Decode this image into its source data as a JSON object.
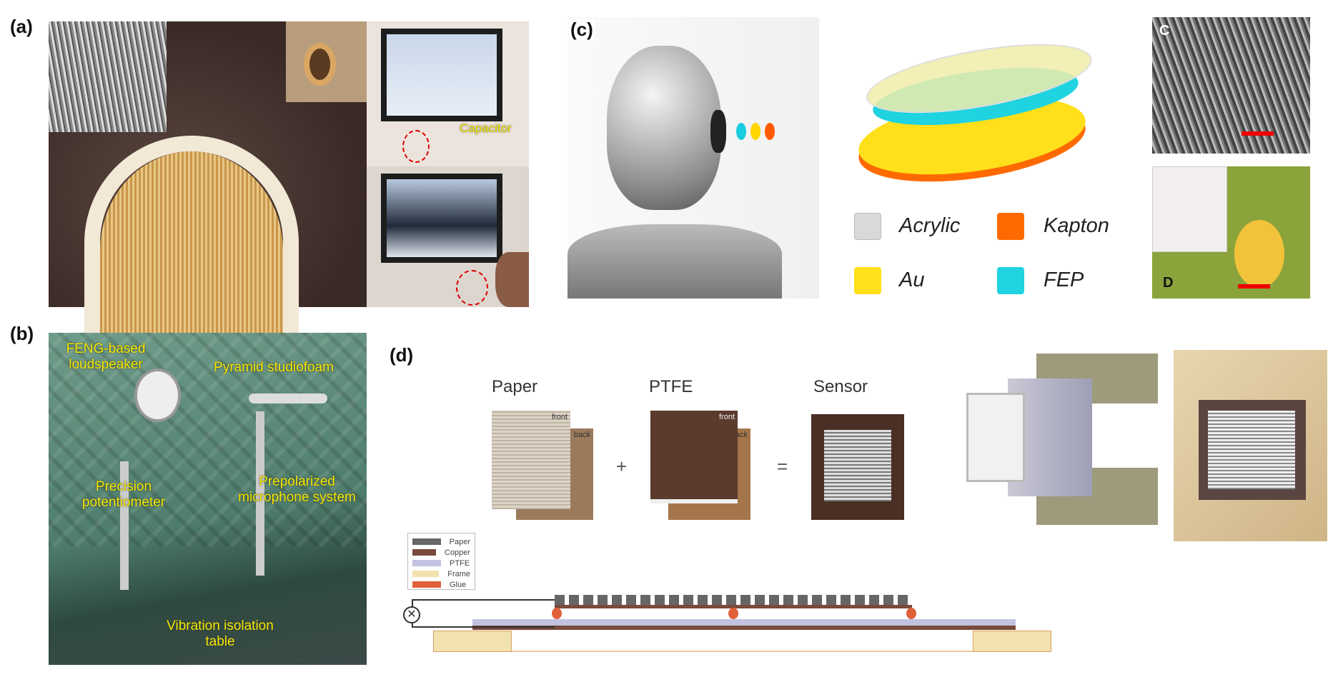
{
  "panel_a": {
    "label": "(a)",
    "capacitor_label": "Capacitor"
  },
  "panel_b": {
    "label": "(b)",
    "loudspeaker": "FENG-based loudspeaker",
    "foam": "Pyramid studiofoam",
    "potentiometer": "Precision potentiometer",
    "microphone": "Prepolarized microphone system",
    "table": "Vibration isolation table"
  },
  "panel_c": {
    "label": "(c)",
    "inset_c": "C",
    "inset_d": "D",
    "legend": [
      {
        "name": "Acrylic",
        "color": "#d9d9d9"
      },
      {
        "name": "Kapton",
        "color": "#ff6a00"
      },
      {
        "name": "Au",
        "color": "#ffe01a"
      },
      {
        "name": "FEP",
        "color": "#1fd3e0"
      }
    ]
  },
  "panel_d": {
    "label": "(d)",
    "paper": "Paper",
    "ptfe": "PTFE",
    "sensor": "Sensor",
    "front1": "front",
    "back1": "back",
    "front2": "front",
    "back2": "back",
    "plus": "+",
    "equals": "=",
    "legend": [
      {
        "name": "Paper",
        "color": "#666666"
      },
      {
        "name": "Copper",
        "color": "#7a4a3a"
      },
      {
        "name": "PTFE",
        "color": "#c2c2e0"
      },
      {
        "name": "Frame",
        "color": "#f2e2b0"
      },
      {
        "name": "Glue",
        "color": "#e0603a"
      }
    ]
  }
}
